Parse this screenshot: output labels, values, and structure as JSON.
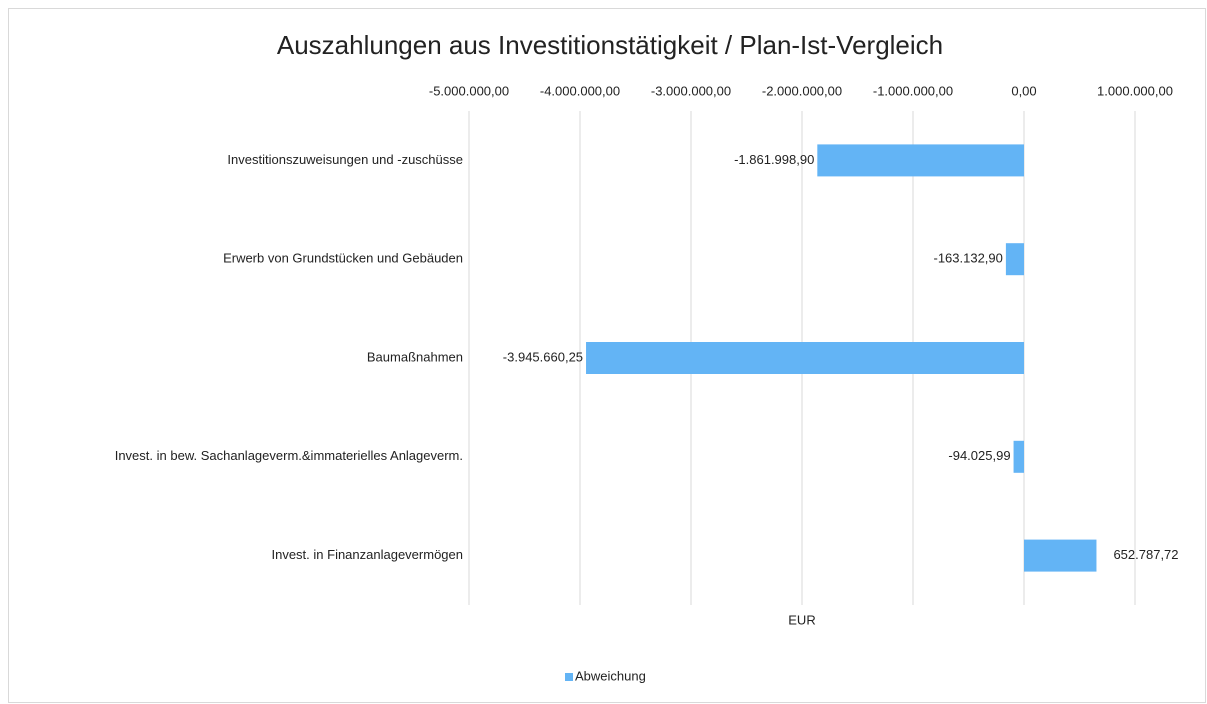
{
  "chart_data": {
    "type": "bar",
    "orientation": "horizontal",
    "title": "Auszahlungen aus Investitionstätigkeit / Plan-Ist-Vergleich",
    "x_label": "EUR",
    "categories": [
      "Investitionszuweisungen und -zuschüsse",
      "Erwerb von Grundstücken und Gebäuden",
      "Baumaßnahmen",
      "Invest. in bew. Sachanlageverm.&immaterielles Anlageverm.",
      "Invest. in Finanzanlagevermögen"
    ],
    "series": [
      {
        "name": "Abweichung",
        "color": "#63b4f5",
        "values": [
          -1861998.9,
          -163132.9,
          -3945660.25,
          -94025.99,
          652787.72
        ],
        "value_labels": [
          "-1.861.998,90",
          "-163.132,90",
          "-3.945.660,25",
          "-94.025,99",
          "652.787,72"
        ]
      }
    ],
    "xlim": [
      -5000000,
      1000000
    ],
    "xticks": [
      {
        "value": -5000000,
        "label": "-5.000.000,00"
      },
      {
        "value": -4000000,
        "label": "-4.000.000,00"
      },
      {
        "value": -3000000,
        "label": "-3.000.000,00"
      },
      {
        "value": -2000000,
        "label": "-2.000.000,00"
      },
      {
        "value": -1000000,
        "label": "-1.000.000,00"
      },
      {
        "value": 0,
        "label": "0,00"
      },
      {
        "value": 1000000,
        "label": "1.000.000,00"
      }
    ],
    "grid": true,
    "legend": "bottom"
  }
}
